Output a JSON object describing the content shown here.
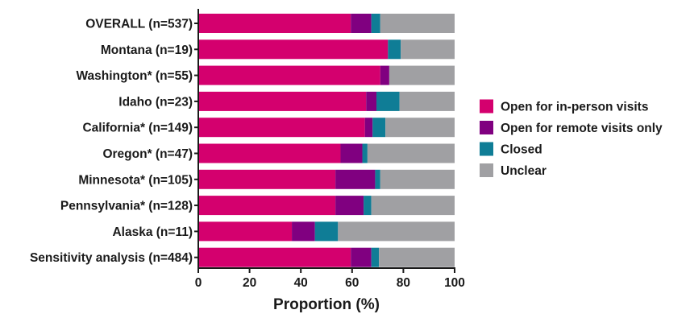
{
  "chart_data": {
    "type": "bar",
    "orientation": "horizontal",
    "stacked": true,
    "categories": [
      "OVERALL (n=537)",
      "Montana (n=19)",
      "Washington* (n=55)",
      "Idaho (n=23)",
      "California* (n=149)",
      "Oregon* (n=47)",
      "Minnesota* (n=105)",
      "Pennsylvania* (n=128)",
      "Alaska (n=11)",
      "Sensitivity analysis (n=484)"
    ],
    "series": [
      {
        "name": "Open for in-person visits",
        "color": "#d4006e",
        "values": [
          59.5,
          74,
          71,
          65.5,
          65,
          55.5,
          53.5,
          53.5,
          36.5,
          59.5
        ]
      },
      {
        "name": "Open for remote visits only",
        "color": "#800080",
        "values": [
          8,
          0,
          3.5,
          4,
          3,
          8.5,
          15.5,
          11,
          9,
          8
        ]
      },
      {
        "name": "Closed",
        "color": "#0f7d96",
        "values": [
          3.5,
          5,
          0,
          9,
          5,
          2,
          2,
          3,
          9,
          3
        ]
      },
      {
        "name": "Unclear",
        "color": "#a0a0a3",
        "values": [
          29,
          21,
          25.5,
          21.5,
          27,
          34,
          29,
          32.5,
          45.5,
          29.5
        ]
      }
    ],
    "xlabel": "Proportion (%)",
    "ylabel": "",
    "xlim": [
      0,
      100
    ],
    "xticks": [
      0,
      20,
      40,
      60,
      80,
      100
    ],
    "grid": false,
    "legend_position": "right"
  }
}
